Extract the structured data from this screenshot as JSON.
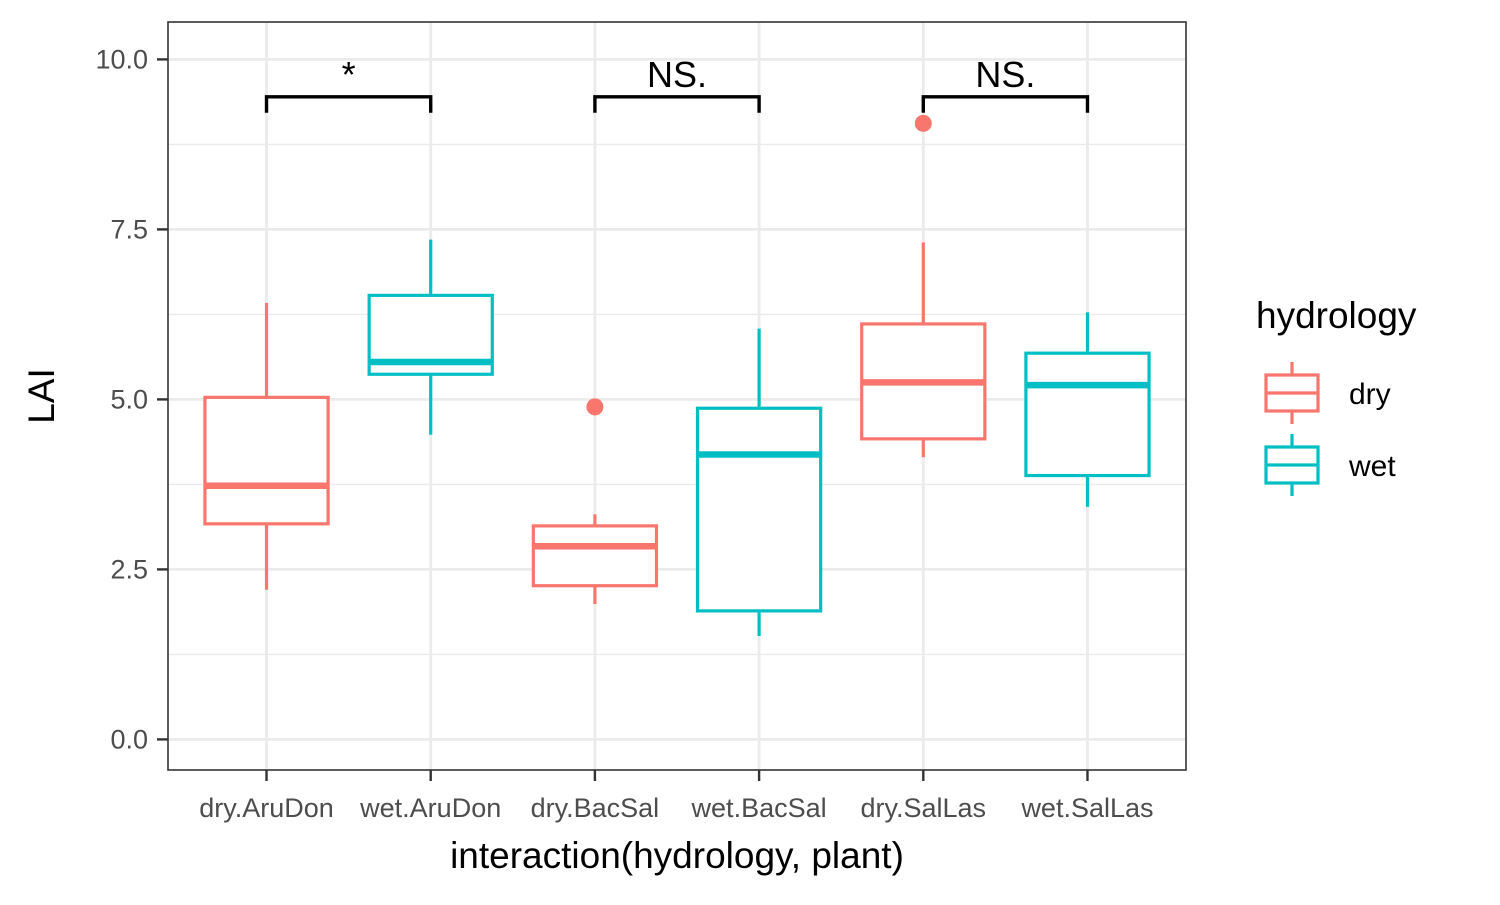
{
  "chart_data": {
    "type": "boxplot",
    "xlabel": "interaction(hydrology, plant)",
    "ylabel": "LAI",
    "ylim": [
      -0.45,
      10.55
    ],
    "yticks": [
      0.0,
      2.5,
      5.0,
      7.5,
      10.0
    ],
    "ytick_labels": [
      "0.0",
      "2.5",
      "5.0",
      "7.5",
      "10.0"
    ],
    "grid": true,
    "legend": {
      "title": "hydrology",
      "position": "right",
      "entries": [
        {
          "label": "dry",
          "color": "#F8766D"
        },
        {
          "label": "wet",
          "color": "#00BFC4"
        }
      ]
    },
    "categories": [
      "dry.AruDon",
      "wet.AruDon",
      "dry.BacSal",
      "wet.BacSal",
      "dry.SalLas",
      "wet.SalLas"
    ],
    "boxes": [
      {
        "category": "dry.AruDon",
        "group": "dry",
        "whisker_low": 2.2,
        "q1": 3.17,
        "median": 3.73,
        "q3": 5.03,
        "whisker_high": 6.42,
        "outliers": []
      },
      {
        "category": "wet.AruDon",
        "group": "wet",
        "whisker_low": 4.48,
        "q1": 5.37,
        "median": 5.55,
        "q3": 6.53,
        "whisker_high": 7.35,
        "outliers": []
      },
      {
        "category": "dry.BacSal",
        "group": "dry",
        "whisker_low": 1.99,
        "q1": 2.26,
        "median": 2.84,
        "q3": 3.14,
        "whisker_high": 3.31,
        "outliers": [
          4.89
        ]
      },
      {
        "category": "wet.BacSal",
        "group": "wet",
        "whisker_low": 1.52,
        "q1": 1.89,
        "median": 4.19,
        "q3": 4.87,
        "whisker_high": 6.04,
        "outliers": []
      },
      {
        "category": "dry.SalLas",
        "group": "dry",
        "whisker_low": 4.15,
        "q1": 4.42,
        "median": 5.25,
        "q3": 6.11,
        "whisker_high": 7.31,
        "outliers": [
          9.06
        ]
      },
      {
        "category": "wet.SalLas",
        "group": "wet",
        "whisker_low": 3.42,
        "q1": 3.88,
        "median": 5.21,
        "q3": 5.68,
        "whisker_high": 6.28,
        "outliers": []
      }
    ],
    "significance": [
      {
        "from": "dry.AruDon",
        "to": "wet.AruDon",
        "label": "*",
        "y": 9.45
      },
      {
        "from": "dry.BacSal",
        "to": "wet.BacSal",
        "label": "NS.",
        "y": 9.45
      },
      {
        "from": "dry.SalLas",
        "to": "wet.SalLas",
        "label": "NS.",
        "y": 9.45
      }
    ]
  }
}
